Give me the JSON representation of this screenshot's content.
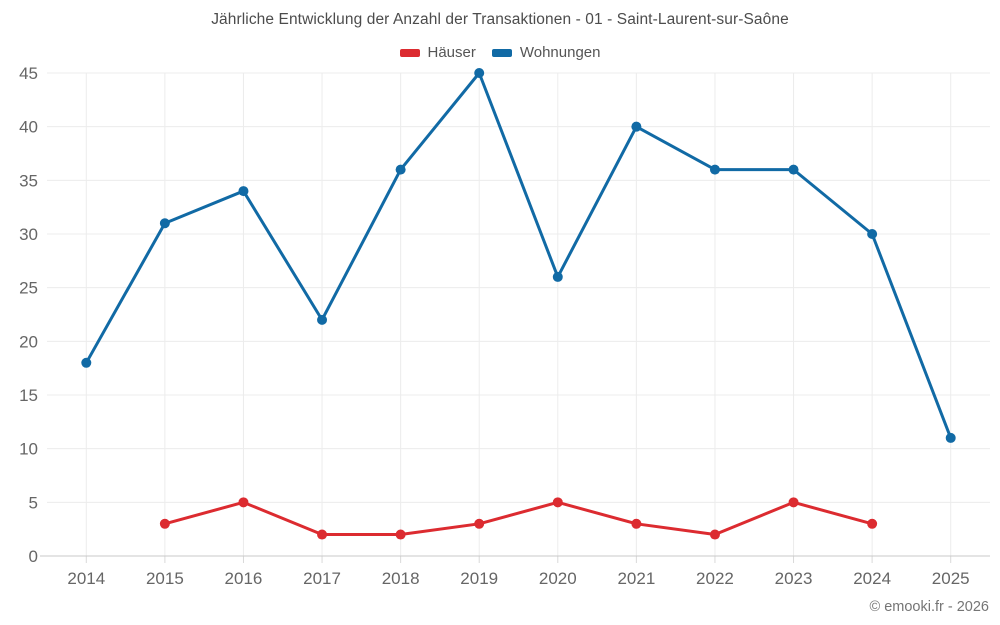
{
  "watermark": {
    "text": "© emooki.fr - 2026"
  },
  "chart_data": {
    "type": "line",
    "title": "Jährliche Entwicklung der Anzahl der Transaktionen - 01 - Saint-Laurent-sur-Saône",
    "xlabel": "",
    "ylabel": "",
    "categories": [
      "2014",
      "2015",
      "2016",
      "2017",
      "2018",
      "2019",
      "2020",
      "2021",
      "2022",
      "2023",
      "2024",
      "2025"
    ],
    "series": [
      {
        "name": "Häuser",
        "color": "#dc2b30",
        "values": [
          null,
          3,
          5,
          2,
          2,
          3,
          5,
          3,
          2,
          5,
          3,
          null
        ]
      },
      {
        "name": "Wohnungen",
        "color": "#116aa5",
        "values": [
          18,
          31,
          34,
          22,
          36,
          45,
          26,
          40,
          36,
          36,
          30,
          11
        ]
      }
    ],
    "ylim": [
      0,
      45
    ],
    "ytick_step": 5,
    "grid": true,
    "legend_position": "top"
  },
  "colors": {
    "grid": "#ececec",
    "axis": "#c9c9c9",
    "tick": "#d9d9d9",
    "tick_label": "#666666",
    "title": "#4c4c4c"
  }
}
